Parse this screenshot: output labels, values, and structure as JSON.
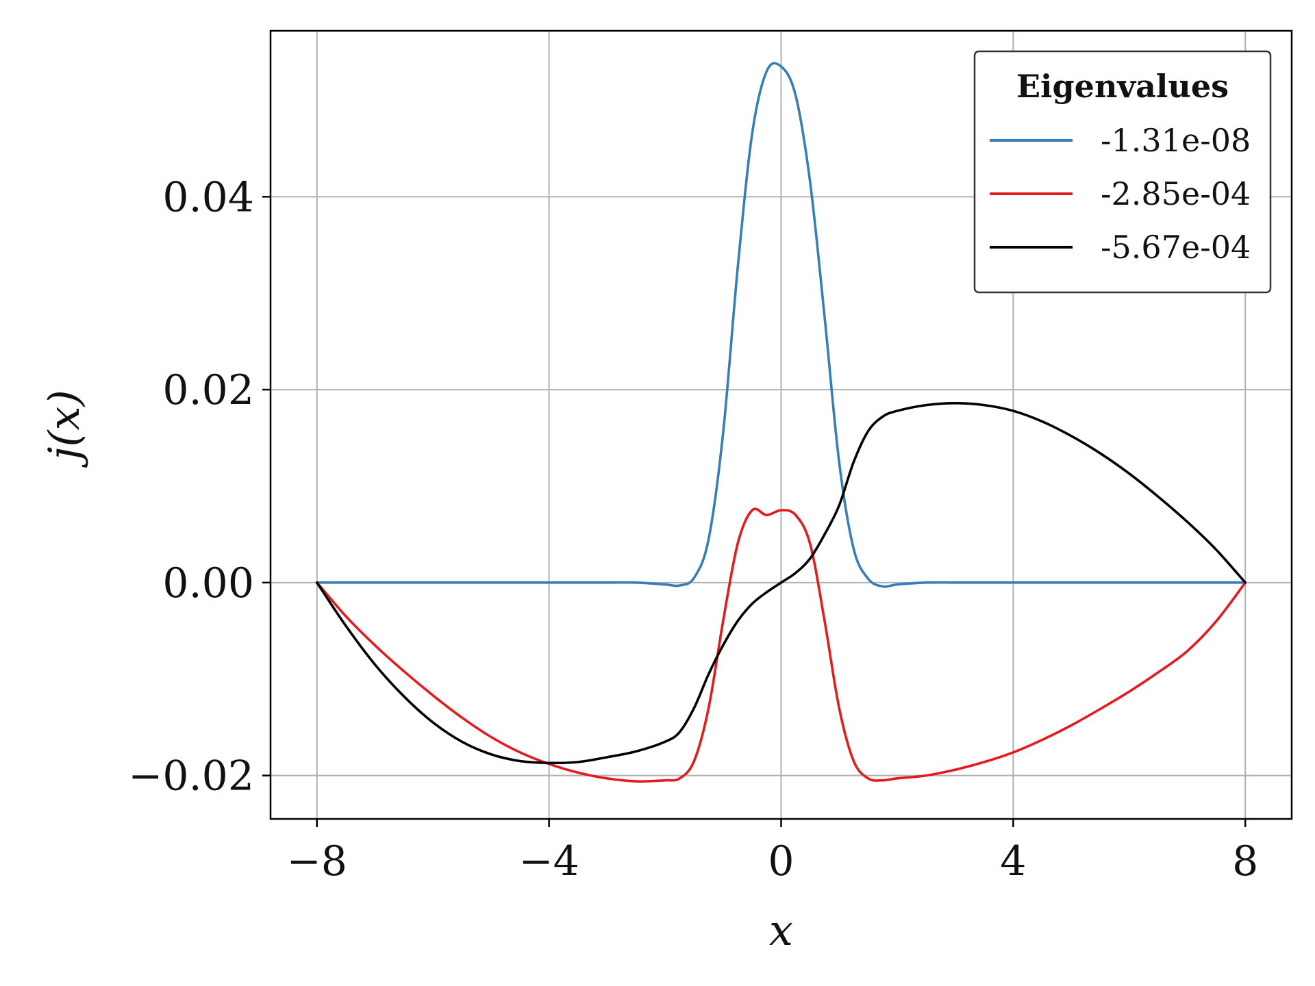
{
  "chart_data": {
    "type": "line",
    "xlabel": "x",
    "ylabel": "j(x)",
    "xlim": [
      -8.8,
      8.8
    ],
    "ylim": [
      -0.0245,
      0.0572
    ],
    "xticks": [
      -8,
      -4,
      0,
      4,
      8
    ],
    "xtick_labels": [
      "−8",
      "−4",
      "0",
      "4",
      "8"
    ],
    "yticks": [
      -0.02,
      0.0,
      0.02,
      0.04
    ],
    "ytick_labels": [
      "−0.02",
      "0.00",
      "0.02",
      "0.04"
    ],
    "grid": true,
    "legend": {
      "title": "Eigenvalues",
      "placement": "top-right"
    },
    "x": [
      -8,
      -7.5,
      -7,
      -6.5,
      -6,
      -5.5,
      -5,
      -4.5,
      -4,
      -3.5,
      -3,
      -2.5,
      -2,
      -1.75,
      -1.5,
      -1.25,
      -1,
      -0.75,
      -0.5,
      -0.25,
      0,
      0.25,
      0.5,
      0.75,
      1,
      1.25,
      1.5,
      1.75,
      2,
      2.5,
      3,
      3.5,
      4,
      4.5,
      5,
      5.5,
      6,
      6.5,
      7,
      7.5,
      8
    ],
    "series": [
      {
        "name": "-1.31e-08",
        "color": "#377eb8",
        "values": [
          0,
          0,
          0,
          0,
          0,
          0,
          0,
          0,
          0,
          0,
          0,
          0,
          -0.0002,
          -0.0003,
          0.0005,
          0.0045,
          0.0155,
          0.0325,
          0.0465,
          0.053,
          0.0535,
          0.0505,
          0.0415,
          0.0275,
          0.0125,
          0.0035,
          0.0004,
          -0.0004,
          -0.0002,
          0,
          0,
          0,
          0,
          0,
          0,
          0,
          0,
          0,
          0,
          0,
          0
        ]
      },
      {
        "name": "-2.85e-04",
        "color": "#e41a1c",
        "values": [
          0,
          -0.0035,
          -0.0065,
          -0.0092,
          -0.0117,
          -0.014,
          -0.016,
          -0.0176,
          -0.0188,
          -0.0197,
          -0.0203,
          -0.0206,
          -0.0205,
          -0.0203,
          -0.0185,
          -0.013,
          -0.004,
          0.004,
          0.0075,
          0.007,
          0.0075,
          0.007,
          0.004,
          -0.004,
          -0.013,
          -0.0185,
          -0.0203,
          -0.0205,
          -0.0203,
          -0.02,
          -0.0194,
          -0.0186,
          -0.0176,
          -0.0163,
          -0.0148,
          -0.0131,
          -0.0113,
          -0.0093,
          -0.0071,
          -0.004,
          0
        ]
      },
      {
        "name": "-5.67e-04",
        "color": "#000000",
        "values": [
          0,
          -0.0045,
          -0.0085,
          -0.0118,
          -0.0145,
          -0.0165,
          -0.0178,
          -0.0185,
          -0.0187,
          -0.0186,
          -0.0181,
          -0.0175,
          -0.0165,
          -0.0155,
          -0.013,
          -0.0095,
          -0.0065,
          -0.004,
          -0.0022,
          -0.001,
          0,
          0.001,
          0.0025,
          0.005,
          0.008,
          0.0125,
          0.0157,
          0.0172,
          0.0178,
          0.0184,
          0.0186,
          0.0184,
          0.0178,
          0.0167,
          0.0152,
          0.0134,
          0.0113,
          0.0089,
          0.0063,
          0.0034,
          0
        ]
      }
    ]
  }
}
